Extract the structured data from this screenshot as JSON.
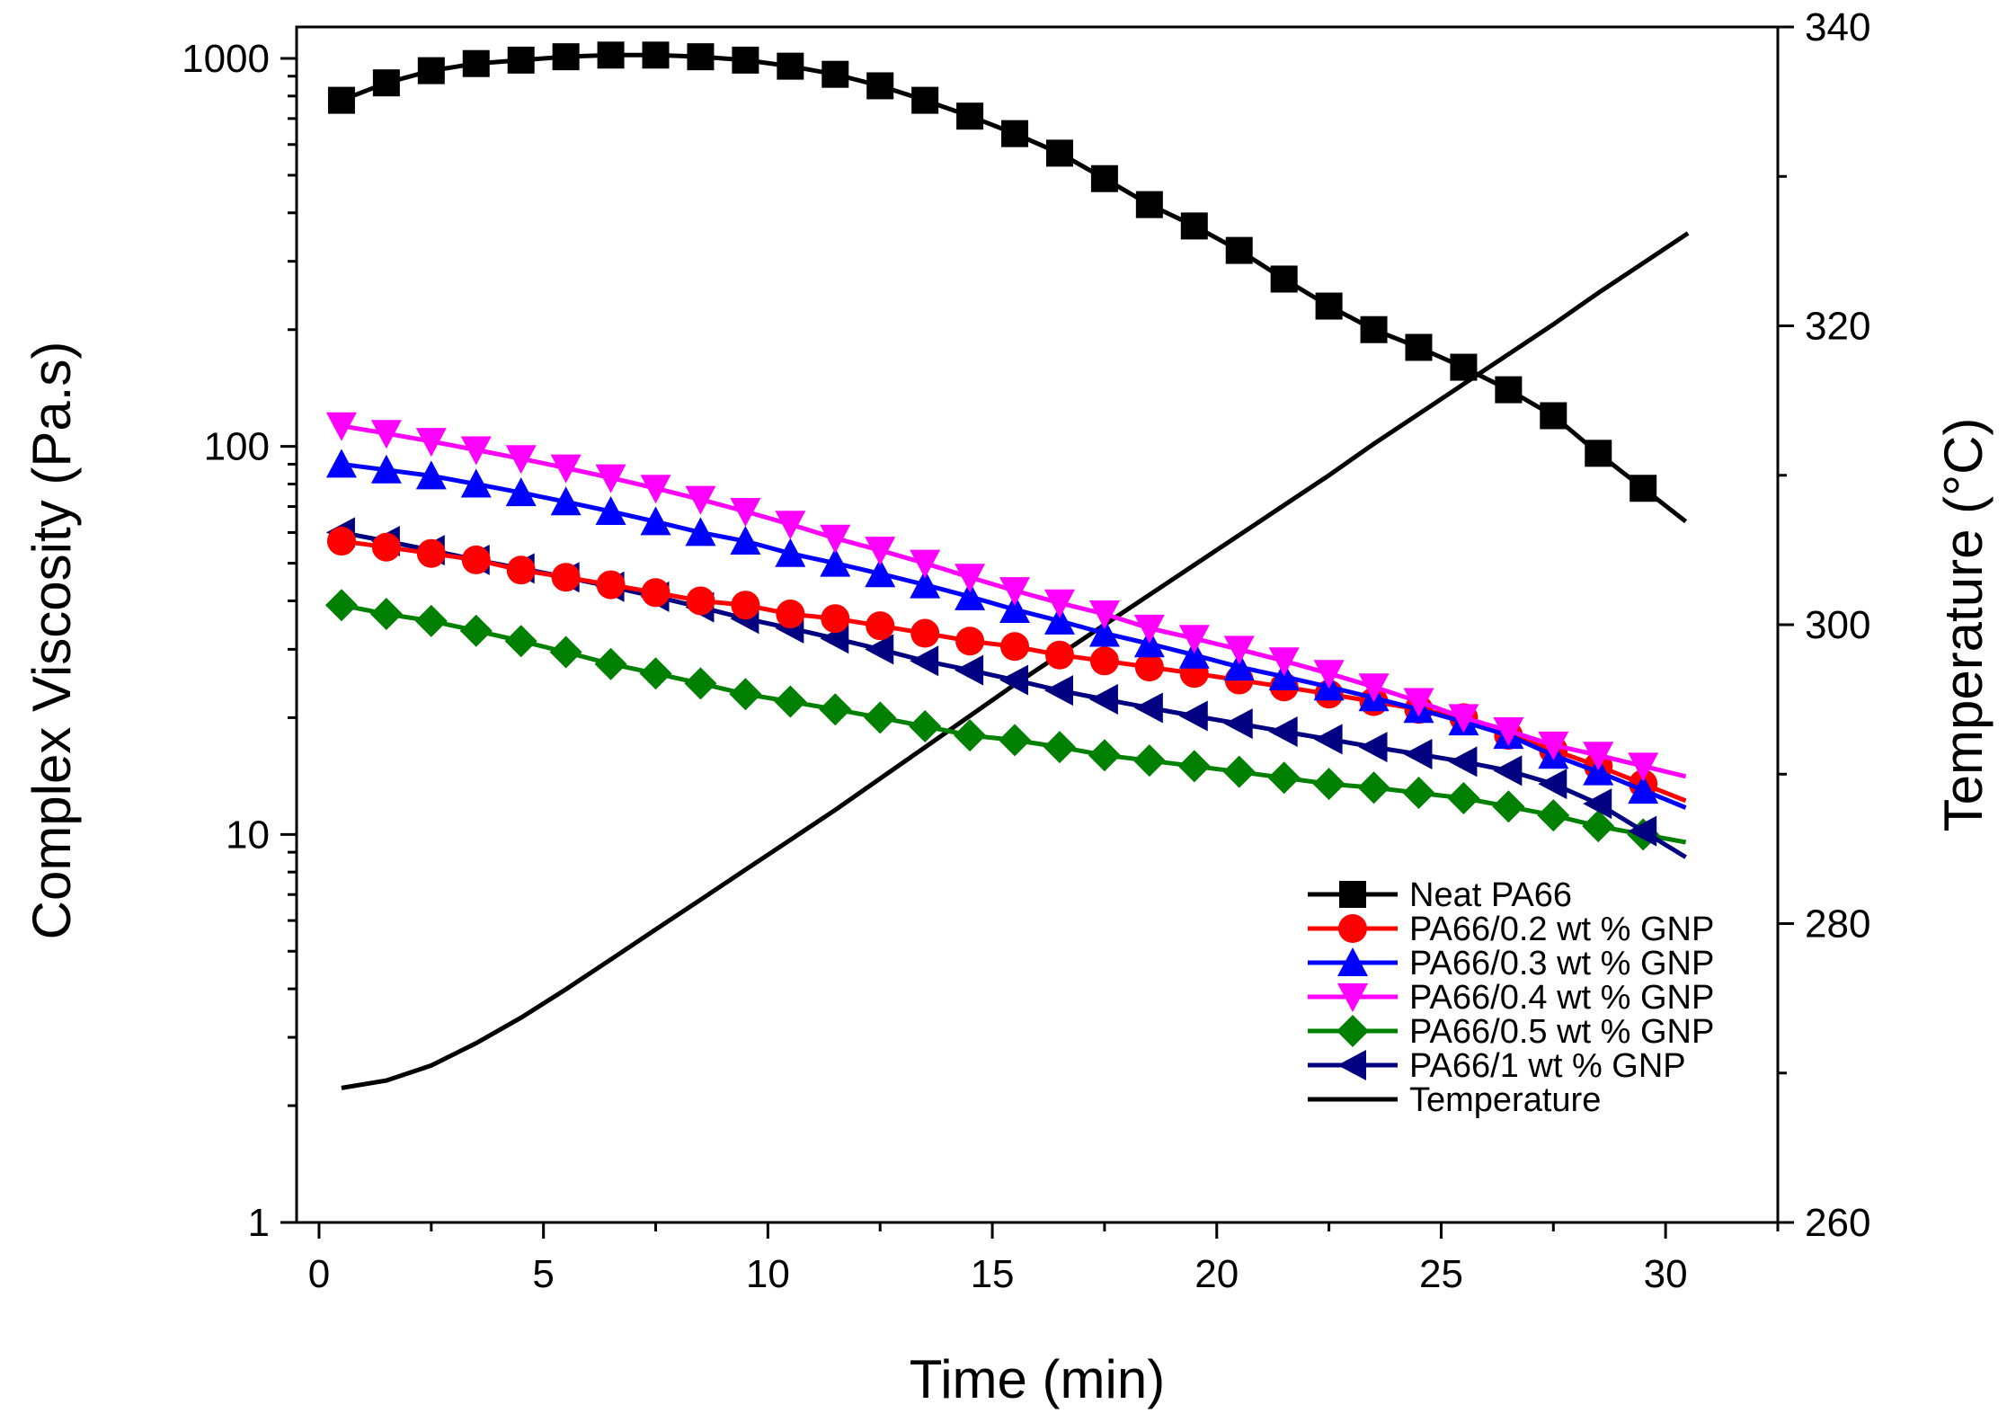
{
  "chart_data": {
    "type": "line",
    "title": "",
    "xlabel": "Time (min)",
    "ylabel": "Complex Viscosity (Pa.s)",
    "ylabel_right": "Temperature (°C)",
    "xlim": [
      -0.5,
      32.5
    ],
    "ylim": [
      1,
      1000
    ],
    "yscale": "log",
    "ylim_right": [
      260,
      340
    ],
    "x_ticks": [
      0,
      5,
      10,
      15,
      20,
      25,
      30
    ],
    "x_tick_labels": [
      "0",
      "5",
      "10",
      "15",
      "20",
      "25",
      "30"
    ],
    "y_ticks": [
      1,
      10,
      100,
      1000
    ],
    "y_tick_labels": [
      "1",
      "10",
      "100",
      "1000"
    ],
    "y_right_ticks": [
      260,
      280,
      300,
      320,
      340
    ],
    "y_right_tick_labels": [
      "260",
      "280",
      "300",
      "320",
      "340"
    ],
    "legend_position": "bottom-right",
    "grid": false,
    "x": [
      0.5,
      1.5,
      2.5,
      3.5,
      4.5,
      5.5,
      6.5,
      7.5,
      8.5,
      9.5,
      10.5,
      11.5,
      12.5,
      13.5,
      14.5,
      15.5,
      16.5,
      17.5,
      18.5,
      19.5,
      20.5,
      21.5,
      22.5,
      23.5,
      24.5,
      25.5,
      26.5,
      27.5,
      28.5,
      29.5
    ],
    "series": [
      {
        "name": "Neat PA66",
        "color": "#000000",
        "marker": "square",
        "axis": "left",
        "values": [
          780,
          865,
          930,
          970,
          990,
          1010,
          1020,
          1020,
          1010,
          990,
          955,
          910,
          850,
          780,
          710,
          640,
          570,
          490,
          420,
          370,
          320,
          270,
          230,
          200,
          180,
          160,
          140,
          120,
          96,
          78
        ]
      },
      {
        "name": "PA66/0.2 wt % GNP",
        "color": "#ff0000",
        "marker": "circle",
        "axis": "left",
        "values": [
          57,
          55,
          53,
          51,
          48,
          46,
          44,
          42,
          40,
          39,
          37,
          36,
          34.5,
          33,
          31.5,
          30.5,
          29,
          28,
          27,
          26,
          25,
          24,
          23,
          22,
          21,
          20,
          18,
          16.5,
          15,
          13.5
        ]
      },
      {
        "name": "PA66/0.3 wt % GNP",
        "color": "#0000ff",
        "marker": "triangle-up",
        "axis": "left",
        "values": [
          90,
          87,
          84,
          80,
          76,
          72,
          68,
          64,
          60,
          57,
          53,
          50,
          47,
          44,
          41,
          38,
          35.5,
          33,
          31,
          29,
          27,
          25.5,
          24,
          22.5,
          21,
          19.5,
          18,
          16,
          14.5,
          13
        ]
      },
      {
        "name": "PA66/0.4 wt % GNP",
        "color": "#ff00ff",
        "marker": "triangle-down",
        "axis": "left",
        "values": [
          113,
          108,
          103,
          98,
          93,
          88,
          83,
          78,
          73,
          68,
          63,
          58,
          54,
          50,
          46,
          42.5,
          39.5,
          37,
          34,
          32,
          30,
          28,
          26,
          24,
          22,
          20,
          18.5,
          17,
          16,
          15
        ]
      },
      {
        "name": "PA66/0.5 wt % GNP",
        "color": "#008000",
        "marker": "diamond",
        "axis": "left",
        "values": [
          39,
          37,
          35.5,
          33.5,
          31.5,
          29.5,
          27.5,
          26,
          24.5,
          23,
          22,
          21,
          20,
          19,
          18,
          17.5,
          16.8,
          16,
          15.5,
          15,
          14.5,
          14,
          13.5,
          13.2,
          12.8,
          12.4,
          11.8,
          11.2,
          10.5,
          10
        ]
      },
      {
        "name": "PA66/1 wt % GNP",
        "color": "#000080",
        "marker": "triangle-left",
        "axis": "left",
        "values": [
          60,
          57,
          54,
          51,
          48.5,
          46,
          43.5,
          41,
          38.5,
          36,
          34,
          32,
          30,
          28,
          26.5,
          25,
          23.5,
          22.3,
          21.2,
          20.2,
          19.3,
          18.4,
          17.6,
          16.8,
          16.1,
          15.4,
          14.6,
          13.5,
          12,
          10.2
        ]
      }
    ],
    "temperature": {
      "name": "Temperature",
      "color": "#000000",
      "axis": "right",
      "x": [
        0.5,
        1.5,
        2.5,
        3.5,
        4.5,
        5.5,
        6.5,
        7.5,
        8.5,
        9.5,
        10.5,
        11.5,
        12.5,
        13.5,
        14.5,
        15.5,
        16.5,
        17.5,
        18.5,
        19.5,
        20.5,
        21.5,
        22.5,
        23.5,
        24.5,
        25.5,
        26.5,
        27.5,
        28.5,
        29.5,
        30.5
      ],
      "values": [
        269,
        269.5,
        270.5,
        272,
        273.7,
        275.6,
        277.6,
        279.6,
        281.6,
        283.6,
        285.6,
        287.6,
        289.7,
        291.8,
        293.9,
        296,
        298,
        300,
        302,
        304,
        306,
        308,
        310,
        312.1,
        314.1,
        316.1,
        318.1,
        320.1,
        322.2,
        324.2,
        326.2
      ]
    }
  }
}
